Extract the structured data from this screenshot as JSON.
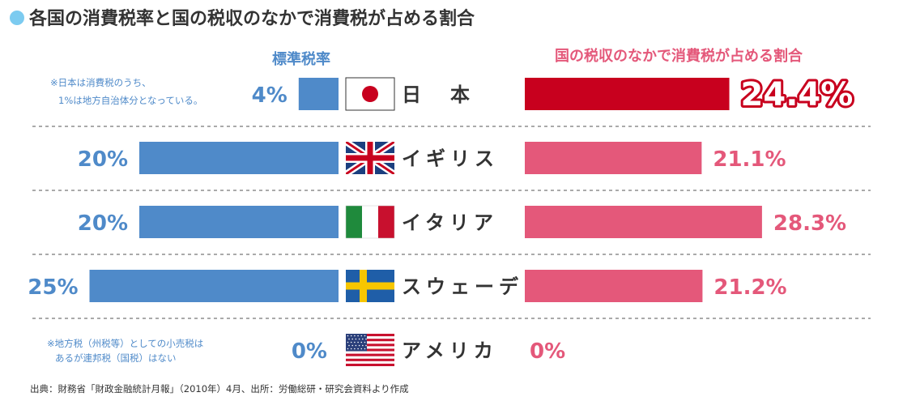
{
  "title": "各国の消費税率と国の税収のなかで消費税が占める割合",
  "header_left": "標準税率",
  "header_right": "国の税収のなかで消費税が占める割合",
  "source": "出典：財務省「財政金融統計月報」（2010年）4月、出所：労働総研・研究会資料より作成",
  "colors": {
    "blue": "#4f8ac9",
    "pink": "#e4587a",
    "red": "#c8001e",
    "title_dot": "#7ccbf0"
  },
  "chart_data": {
    "type": "bar",
    "title": "各国の消費税率と国の税収のなかで消費税が占める割合",
    "categories": [
      "日本",
      "イギリス",
      "イタリア",
      "スウェーデン",
      "アメリカ"
    ],
    "category_labels": [
      "日　本",
      "イギリス",
      "イタリア",
      "スウェーデン",
      "アメリカ"
    ],
    "flags": [
      "japan-flag-icon",
      "uk-flag-icon",
      "italy-flag-icon",
      "sweden-flag-icon",
      "usa-flag-icon"
    ],
    "series": [
      {
        "name": "標準税率",
        "values": [
          4,
          20,
          20,
          25,
          0
        ],
        "labels": [
          "4%",
          "20%",
          "20%",
          "25%",
          "0%"
        ],
        "color": "#4f8ac9"
      },
      {
        "name": "国の税収のなかで消費税が占める割合",
        "values": [
          24.4,
          21.1,
          28.3,
          21.2,
          0
        ],
        "labels": [
          "24.4%",
          "21.1%",
          "28.3%",
          "21.2%",
          "0%"
        ],
        "color": "#e4587a",
        "highlight_color": "#c8001e"
      }
    ],
    "notes": {
      "japan": [
        "※日本は消費税のうち、",
        "1%は地方自治体分となっている。"
      ],
      "usa": [
        "※地方税（州税等）としての小売税は",
        "あるが連邦税（国税）はない"
      ]
    }
  }
}
